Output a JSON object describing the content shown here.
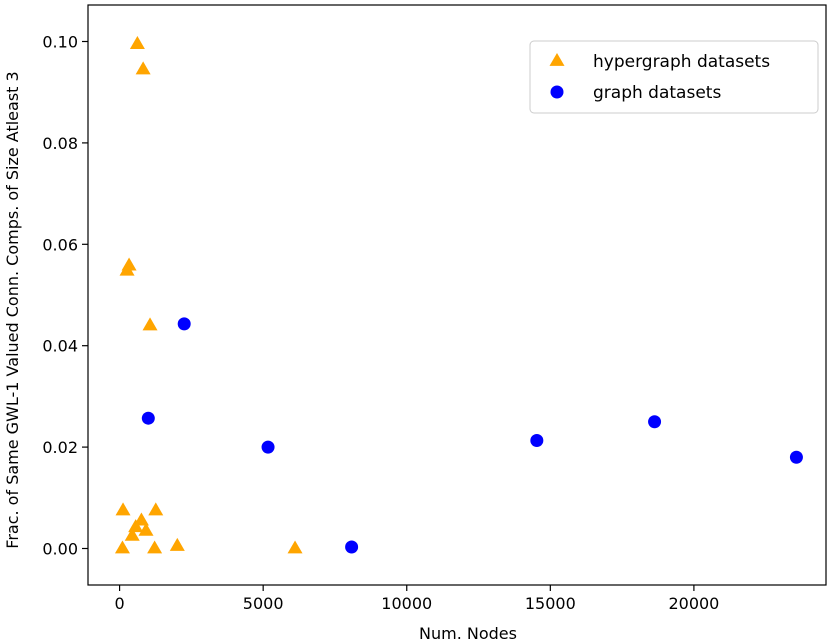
{
  "chart_data": {
    "type": "scatter",
    "title": "",
    "xlabel": "Num. Nodes",
    "ylabel": "Frac. of Same GWL-1 Valued Conn. Comps. of Size Atleast 3",
    "xlim": [
      -1100,
      24600
    ],
    "ylim": [
      -0.0072,
      0.1072
    ],
    "xticks": [
      0,
      5000,
      10000,
      15000,
      20000
    ],
    "xtick_labels": [
      "0",
      "5000",
      "10000",
      "15000",
      "20000"
    ],
    "yticks": [
      0.0,
      0.02,
      0.04,
      0.06,
      0.08,
      0.1
    ],
    "ytick_labels": [
      "0.00",
      "0.02",
      "0.04",
      "0.06",
      "0.08",
      "0.10"
    ],
    "grid": false,
    "legend_position": "top-right",
    "series": [
      {
        "name": "hypergraph datasets",
        "marker": "triangle",
        "color": "#FFA500",
        "points": [
          {
            "x": 620,
            "y": 0.0995
          },
          {
            "x": 820,
            "y": 0.0945
          },
          {
            "x": 330,
            "y": 0.0558
          },
          {
            "x": 260,
            "y": 0.0548
          },
          {
            "x": 1060,
            "y": 0.044
          },
          {
            "x": 120,
            "y": 0.0075
          },
          {
            "x": 1260,
            "y": 0.0075
          },
          {
            "x": 760,
            "y": 0.0055
          },
          {
            "x": 560,
            "y": 0.0042
          },
          {
            "x": 920,
            "y": 0.0035
          },
          {
            "x": 440,
            "y": 0.0025
          },
          {
            "x": 100,
            "y": 0.0
          },
          {
            "x": 1220,
            "y": 0.0
          },
          {
            "x": 2010,
            "y": 0.0005
          },
          {
            "x": 6110,
            "y": 0.0
          }
        ]
      },
      {
        "name": "graph datasets",
        "marker": "circle",
        "color": "#0000FF",
        "points": [
          {
            "x": 2250,
            "y": 0.0443
          },
          {
            "x": 1000,
            "y": 0.0257
          },
          {
            "x": 5170,
            "y": 0.02
          },
          {
            "x": 8080,
            "y": 0.0003
          },
          {
            "x": 14530,
            "y": 0.0213
          },
          {
            "x": 18630,
            "y": 0.025
          },
          {
            "x": 23570,
            "y": 0.018
          }
        ]
      }
    ]
  }
}
